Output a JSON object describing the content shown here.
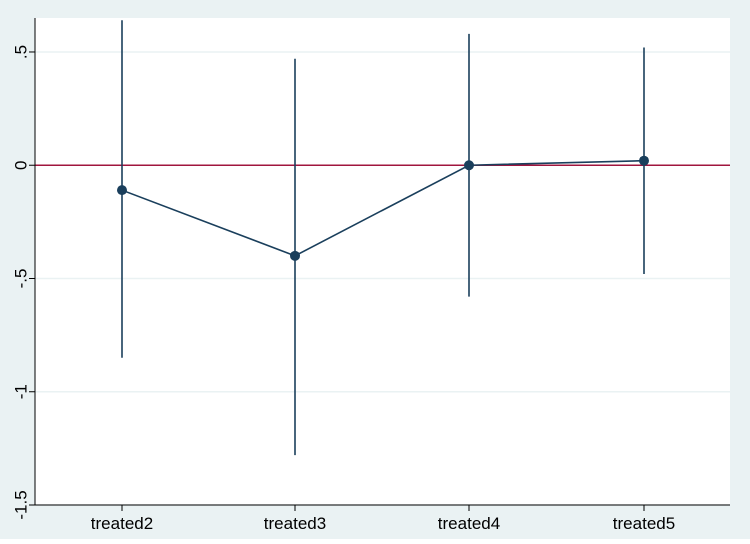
{
  "chart_data": {
    "type": "scatter",
    "title": "",
    "xlabel": "",
    "ylabel": "",
    "categories": [
      "treated2",
      "treated3",
      "treated4",
      "treated5"
    ],
    "series": [
      {
        "values": [
          -0.11,
          -0.4,
          0.0,
          0.02
        ],
        "ci_lower": [
          -0.85,
          -1.28,
          -0.58,
          -0.48
        ],
        "ci_upper": [
          0.64,
          0.47,
          0.58,
          0.52
        ],
        "connected": true
      }
    ],
    "reference_line": {
      "y": 0,
      "color": "#a0153e"
    },
    "ylim": [
      -1.5,
      0.65
    ],
    "yticks": [
      -1.5,
      -1,
      -0.5,
      0,
      0.5
    ],
    "ytick_labels": [
      "-1.5",
      "-1",
      "-.5",
      "0",
      ".5"
    ],
    "grid": true,
    "colors": {
      "marker": "#1a3f5c",
      "line": "#1a3f5c",
      "ref_line": "#a0153e",
      "grid": "#eaf2f3",
      "plot_bg": "#ffffff",
      "outer_bg": "#eaf2f3"
    }
  }
}
